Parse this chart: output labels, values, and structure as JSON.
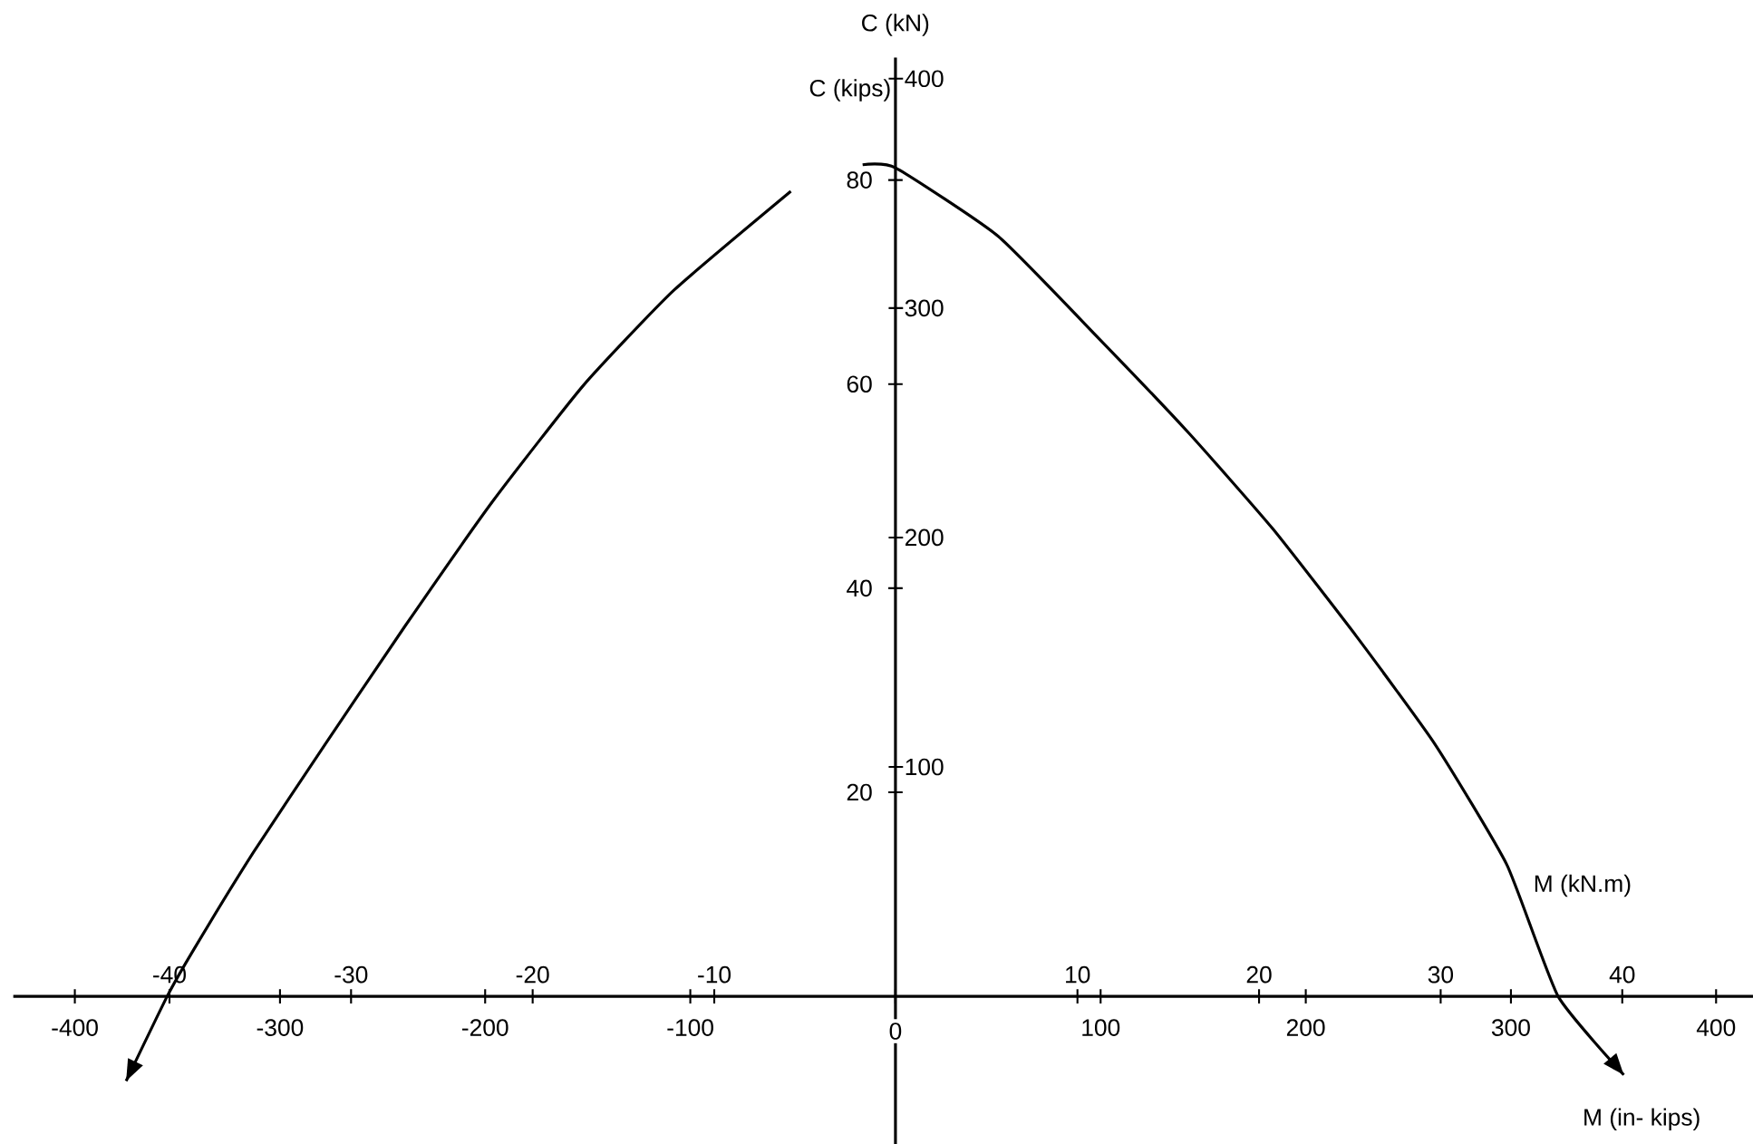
{
  "chart_data": {
    "type": "line",
    "xlabel": "M (in- kips)",
    "ylabel": "C (kips)",
    "x2label": "M (kN.m)",
    "y2label": "C (kN)",
    "xlim": [
      -430,
      418
    ],
    "ylim": [
      -14.5,
      92
    ],
    "x2lim": [
      -48.6,
      47.2
    ],
    "y2lim": [
      -64.5,
      409.2
    ],
    "xticks": [
      -400,
      -300,
      -200,
      -100,
      0,
      100,
      200,
      300,
      400
    ],
    "yticks": [
      20,
      40,
      60,
      80
    ],
    "x2ticks": [
      -40,
      -30,
      -20,
      -10,
      10,
      20,
      30,
      40
    ],
    "y2ticks": [
      100,
      200,
      300,
      400
    ],
    "marker": "none",
    "line_style": "solid",
    "series": [
      {
        "color": "#000000",
        "x": [
          -16,
          0,
          50,
          99,
          143,
          184,
          225,
          263,
          298,
          323,
          355
        ],
        "values": [
          81.5,
          81.2,
          74.5,
          64.5,
          55.2,
          45.8,
          35.2,
          24.7,
          12.9,
          0,
          -7.7
        ]
      },
      {
        "color": "#000000",
        "x": [
          -51,
          -108,
          -152,
          -196,
          -239,
          -278,
          -313,
          -342,
          -355,
          -375
        ],
        "values": [
          78.9,
          69.2,
          59.9,
          48.6,
          36.3,
          24.7,
          14.1,
          4.6,
          0,
          -8.3
        ]
      }
    ]
  }
}
